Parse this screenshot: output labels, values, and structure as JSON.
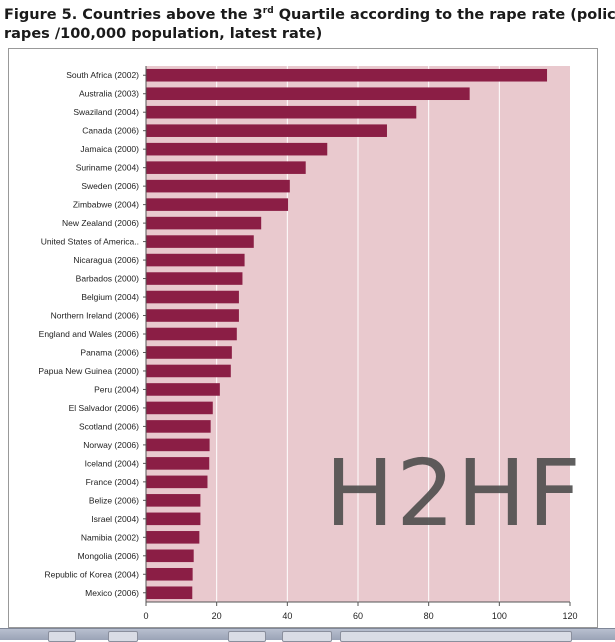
{
  "title": {
    "line1_before": "Figure 5. Countries above the 3",
    "line1_sup": "rd",
    "line1_after": " Quartile according to the rape rate (police record",
    "line2": "rapes /100,000 population, latest rate)"
  },
  "watermark": "H2HF",
  "colors": {
    "bar": "#8b1e45",
    "plot_background": "#e9c9ce",
    "gridline": "#ffffff"
  },
  "chart_data": {
    "type": "bar",
    "orientation": "horizontal",
    "categories": [
      "South Africa (2002)",
      "Australia (2003)",
      "Swaziland (2004)",
      "Canada (2006)",
      "Jamaica (2000)",
      "Suriname (2004)",
      "Sweden (2006)",
      "Zimbabwe (2004)",
      "New Zealand (2006)",
      "United States of America..",
      "Nicaragua (2006)",
      "Barbados (2000)",
      "Belgium (2004)",
      "Northern Ireland (2006)",
      "England and Wales (2006)",
      "Panama (2006)",
      "Papua New Guinea (2000)",
      "Peru (2004)",
      "El Salvador (2006)",
      "Scotland (2006)",
      "Norway (2006)",
      "Iceland (2004)",
      "France (2004)",
      "Belize (2006)",
      "Israel (2004)",
      "Namibia (2002)",
      "Mongolia (2006)",
      "Republic of Korea (2004)",
      "Mexico (2006)"
    ],
    "values": [
      113.5,
      91.6,
      76.5,
      68.2,
      51.3,
      45.2,
      40.7,
      40.2,
      32.6,
      30.5,
      27.9,
      27.3,
      26.3,
      26.3,
      25.7,
      24.3,
      24.0,
      20.9,
      18.9,
      18.3,
      18.0,
      17.9,
      17.4,
      15.4,
      15.4,
      15.1,
      13.5,
      13.2,
      13.1
    ],
    "xlim": [
      0,
      120
    ],
    "xticks": [
      0,
      20,
      40,
      60,
      80,
      100,
      120
    ],
    "grid": true
  }
}
